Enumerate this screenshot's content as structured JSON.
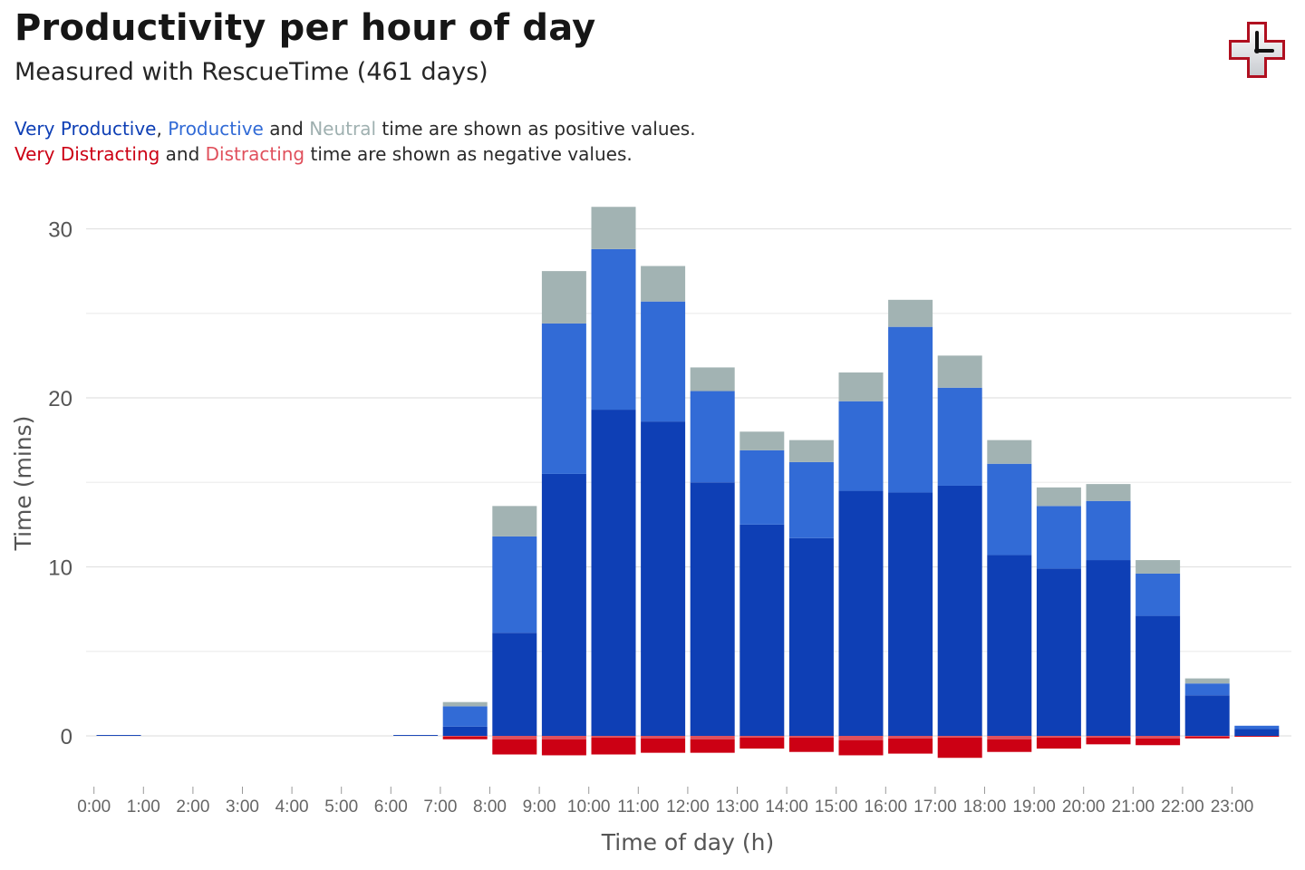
{
  "header": {
    "title": "Productivity per hour of day",
    "subtitle": "Measured with RescueTime (461 days)"
  },
  "legend_note": {
    "line1": {
      "very_productive": "Very Productive",
      "sep1": ", ",
      "productive": "Productive",
      "and1": " and ",
      "neutral": "Neutral",
      "rest": " time are shown as positive values."
    },
    "line2": {
      "very_distracting": "Very Distracting",
      "and2": " and ",
      "distracting": "Distracting",
      "rest": " time are shown as negative values."
    }
  },
  "colors": {
    "very_productive": "#0e3fb5",
    "productive": "#326bd6",
    "neutral": "#a2b3b3",
    "distracting": "#e0505c",
    "very_distracting": "#cc0014"
  },
  "logo": {
    "icon": "rescuetime-logo-icon"
  },
  "chart_data": {
    "type": "bar",
    "stacked": true,
    "title": "Productivity per hour of day",
    "xlabel": "Time of day (h)",
    "ylabel": "Time (mins)",
    "ylim": [
      -2.5,
      31.5
    ],
    "yticks": [
      0,
      10,
      20,
      30
    ],
    "grid": true,
    "categories": [
      "0:00",
      "1:00",
      "2:00",
      "3:00",
      "4:00",
      "5:00",
      "6:00",
      "7:00",
      "8:00",
      "9:00",
      "10:00",
      "11:00",
      "12:00",
      "13:00",
      "14:00",
      "15:00",
      "16:00",
      "17:00",
      "18:00",
      "19:00",
      "20:00",
      "21:00",
      "22:00",
      "23:00"
    ],
    "series": [
      {
        "name": "Very Productive",
        "color": "#0e3fb5",
        "values": [
          0.05,
          0,
          0,
          0,
          0,
          0,
          0.05,
          0.55,
          6.1,
          15.5,
          19.3,
          18.6,
          15.0,
          12.5,
          11.7,
          14.5,
          14.4,
          14.8,
          10.7,
          9.9,
          10.4,
          7.1,
          2.4,
          0.4
        ]
      },
      {
        "name": "Productive",
        "color": "#326bd6",
        "values": [
          0,
          0,
          0,
          0,
          0,
          0,
          0,
          1.2,
          5.7,
          8.9,
          9.5,
          7.1,
          5.4,
          4.4,
          4.5,
          5.3,
          9.8,
          5.8,
          5.4,
          3.7,
          3.5,
          2.5,
          0.7,
          0.2
        ]
      },
      {
        "name": "Neutral",
        "color": "#a2b3b3",
        "values": [
          0,
          0,
          0,
          0,
          0,
          0,
          0,
          0.25,
          1.8,
          3.1,
          2.5,
          2.1,
          1.4,
          1.1,
          1.3,
          1.7,
          1.6,
          1.9,
          1.4,
          1.1,
          1.0,
          0.8,
          0.3,
          0
        ]
      },
      {
        "name": "Distracting",
        "color": "#e0505c",
        "values": [
          0,
          0,
          0,
          0,
          0,
          0,
          0,
          -0.05,
          -0.2,
          -0.2,
          -0.1,
          -0.15,
          -0.2,
          -0.1,
          -0.1,
          -0.25,
          -0.15,
          -0.1,
          -0.2,
          -0.1,
          -0.1,
          -0.15,
          -0.05,
          0
        ]
      },
      {
        "name": "Very Distracting",
        "color": "#cc0014",
        "values": [
          0,
          0,
          0,
          0,
          0,
          0,
          0,
          -0.15,
          -0.9,
          -0.95,
          -1.0,
          -0.85,
          -0.8,
          -0.65,
          -0.85,
          -0.9,
          -0.9,
          -1.2,
          -0.75,
          -0.65,
          -0.4,
          -0.4,
          -0.1,
          -0.05
        ]
      }
    ]
  }
}
